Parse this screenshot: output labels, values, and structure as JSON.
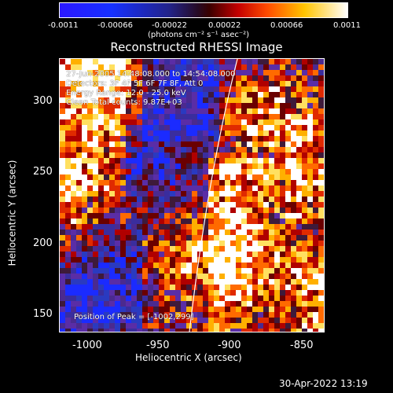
{
  "colorbar": {
    "ticks": [
      "-0.0011",
      "-0.00066",
      "-0.00022",
      "0.00022",
      "0.00066",
      "0.0011"
    ],
    "unit_label": "(photons cm⁻² s⁻¹ asec⁻²)"
  },
  "title": "Reconstructed RHESSI Image",
  "annotations": {
    "time_range": "27-Jun-2005 14:48:08.000 to 14:54:08.000",
    "detectors": "Detectors: 3F 4F 5F 6F 7F 8F, Att 0",
    "energy_range": "Energy Range: 12.0 - 25.0 keV",
    "counts": "Clean    Total counts: 9.87E+03",
    "peak": "Position of Peak = [-1002,299]"
  },
  "axes": {
    "xlabel": "Heliocentric X (arcsec)",
    "ylabel": "Heliocentric Y (arcsec)",
    "xticks": [
      "-1000",
      "-950",
      "-900",
      "-850"
    ],
    "yticks": [
      "300",
      "250",
      "200",
      "150"
    ]
  },
  "timestamp": "30-Apr-2022 13:19",
  "colors": {
    "background": "#000000",
    "limb_line": "#ffffff",
    "text": "#ffffff"
  }
}
